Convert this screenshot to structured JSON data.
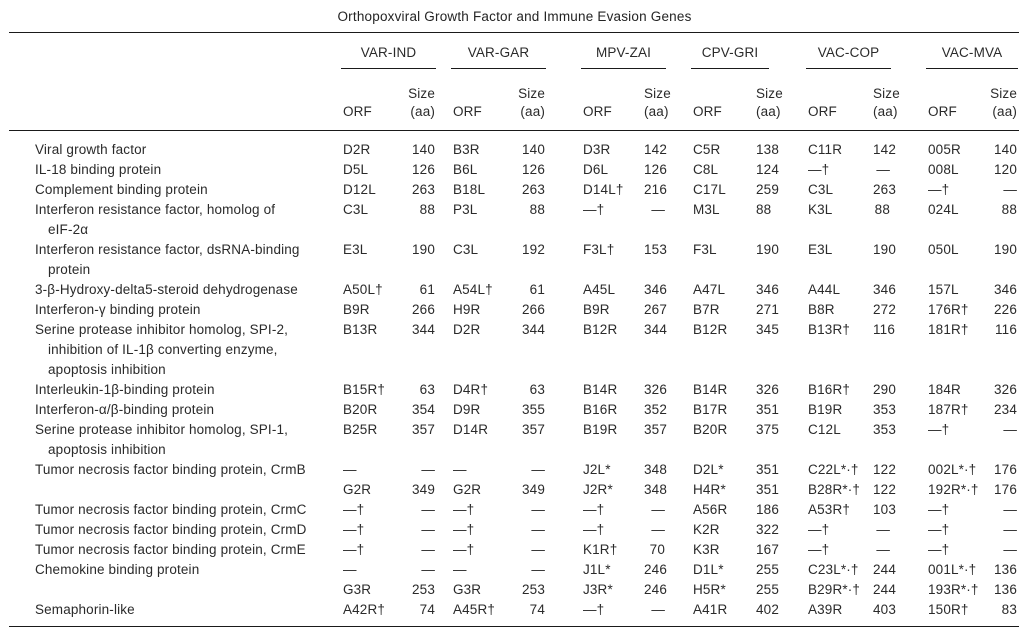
{
  "title": "Orthopoxviral Growth Factor and Immune Evasion Genes",
  "colors": {
    "background": "#ffffff",
    "text": "#2a2a2a",
    "rule": "#1a1a1a"
  },
  "table": {
    "groups": [
      "VAR-IND",
      "VAR-GAR",
      "MPV-ZAI",
      "CPV-GRI",
      "VAC-COP",
      "VAC-MVA"
    ],
    "orf_header": "ORF",
    "size_header": "Size\n(aa)",
    "rows": [
      {
        "label": "Viral growth factor",
        "cells": [
          "D2R",
          "140",
          "B3R",
          "140",
          "D3R",
          "142",
          "C5R",
          "138",
          "C11R",
          "142",
          "005R",
          "140"
        ]
      },
      {
        "label": "IL-18 binding protein",
        "cells": [
          "D5L",
          "126",
          "B6L",
          "126",
          "D6L",
          "126",
          "C8L",
          "124",
          "—†",
          "—",
          "008L",
          "120"
        ]
      },
      {
        "label": "Complement binding protein",
        "cells": [
          "D12L",
          "263",
          "B18L",
          "263",
          "D14L†",
          "216",
          "C17L",
          "259",
          "C3L",
          "263",
          "—†",
          "—"
        ]
      },
      {
        "label": "Interferon resistance factor, homolog of\neIF-2α",
        "cells": [
          "C3L",
          "88",
          "P3L",
          "88",
          "—†",
          "—",
          "M3L",
          "88",
          "K3L",
          "88",
          "024L",
          "88"
        ]
      },
      {
        "label": "Interferon resistance factor, dsRNA-binding\nprotein",
        "cells": [
          "E3L",
          "190",
          "C3L",
          "192",
          "F3L†",
          "153",
          "F3L",
          "190",
          "E3L",
          "190",
          "050L",
          "190"
        ]
      },
      {
        "label": "3-β-Hydroxy-delta5-steroid dehydrogenase",
        "cells": [
          "A50L†",
          "61",
          "A54L†",
          "61",
          "A45L",
          "346",
          "A47L",
          "346",
          "A44L",
          "346",
          "157L",
          "346"
        ]
      },
      {
        "label": "Interferon-γ binding protein",
        "cells": [
          "B9R",
          "266",
          "H9R",
          "266",
          "B9R",
          "267",
          "B7R",
          "271",
          "B8R",
          "272",
          "176R†",
          "226"
        ]
      },
      {
        "label": "Serine protease inhibitor homolog, SPI-2,\ninhibition of IL-1β converting enzyme,\napoptosis inhibition",
        "cells": [
          "B13R",
          "344",
          "D2R",
          "344",
          "B12R",
          "344",
          "B12R",
          "345",
          "B13R†",
          "116",
          "181R†",
          "116"
        ]
      },
      {
        "label": "Interleukin-1β-binding protein",
        "cells": [
          "B15R†",
          "63",
          "D4R†",
          "63",
          "B14R",
          "326",
          "B14R",
          "326",
          "B16R†",
          "290",
          "184R",
          "326"
        ]
      },
      {
        "label": "Interferon-α/β-binding protein",
        "cells": [
          "B20R",
          "354",
          "D9R",
          "355",
          "B16R",
          "352",
          "B17R",
          "351",
          "B19R",
          "353",
          "187R†",
          "234"
        ]
      },
      {
        "label": "Serine protease inhibitor homolog, SPI-1,\napoptosis inhibition",
        "cells": [
          "B25R",
          "357",
          "D14R",
          "357",
          "B19R",
          "357",
          "B20R",
          "375",
          "C12L",
          "353",
          "—†",
          "—"
        ]
      },
      {
        "label": "Tumor necrosis factor binding protein, CrmB",
        "cells": [
          "—",
          "—",
          "—",
          "—",
          "J2L*",
          "348",
          "D2L*",
          "351",
          "C22L*·†",
          "122",
          "002L*·†",
          "176"
        ]
      },
      {
        "label": "",
        "cells": [
          "G2R",
          "349",
          "G2R",
          "349",
          "J2R*",
          "348",
          "H4R*",
          "351",
          "B28R*·†",
          "122",
          "192R*·†",
          "176"
        ]
      },
      {
        "label": "Tumor necrosis factor binding protein, CrmC",
        "cells": [
          "—†",
          "—",
          "—†",
          "—",
          "—†",
          "—",
          "A56R",
          "186",
          "A53R†",
          "103",
          "—†",
          "—"
        ]
      },
      {
        "label": "Tumor necrosis factor binding protein, CrmD",
        "cells": [
          "—†",
          "—",
          "—†",
          "—",
          "—†",
          "—",
          "K2R",
          "322",
          "—†",
          "—",
          "—†",
          "—"
        ]
      },
      {
        "label": "Tumor necrosis factor binding protein, CrmE",
        "cells": [
          "—†",
          "—",
          "—†",
          "—",
          "K1R†",
          "70",
          "K3R",
          "167",
          "—†",
          "—",
          "—†",
          "—"
        ]
      },
      {
        "label": "Chemokine binding protein",
        "cells": [
          "—",
          "—",
          "—",
          "—",
          "J1L*",
          "246",
          "D1L*",
          "255",
          "C23L*·†",
          "244",
          "001L*·†",
          "136"
        ]
      },
      {
        "label": "",
        "cells": [
          "G3R",
          "253",
          "G3R",
          "253",
          "J3R*",
          "246",
          "H5R*",
          "255",
          "B29R*·†",
          "244",
          "193R*·†",
          "136"
        ]
      },
      {
        "label": "Semaphorin-like",
        "cells": [
          "A42R†",
          "74",
          "A45R†",
          "74",
          "—†",
          "—",
          "A41R",
          "402",
          "A39R",
          "403",
          "150R†",
          "83"
        ]
      }
    ]
  }
}
